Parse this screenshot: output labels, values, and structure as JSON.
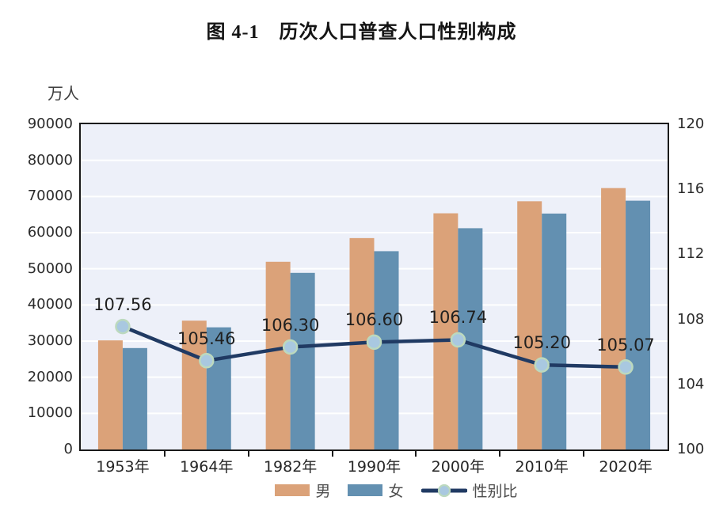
{
  "title": "图 4-1　历次人口普查人口性别构成",
  "chart_data": {
    "type": "bar+line combo",
    "title": "图 4-1　历次人口普查人口性别构成",
    "categories": [
      "1953年",
      "1964年",
      "1982年",
      "1990年",
      "2000年",
      "2010年",
      "2020年"
    ],
    "series": [
      {
        "name": "男",
        "type": "bar",
        "axis": "left",
        "color": "#dba279",
        "values": [
          30190,
          35652,
          51944,
          58495,
          65355,
          68685,
          72334
        ]
      },
      {
        "name": "女",
        "type": "bar",
        "axis": "left",
        "color": "#6390b1",
        "values": [
          28070,
          33806,
          48874,
          54873,
          61228,
          65287,
          68844
        ]
      },
      {
        "name": "性别比",
        "type": "line",
        "axis": "right",
        "color": "#203a63",
        "marker_fill": "#a9c8e0",
        "marker_stroke": "#bcd9be",
        "values": [
          107.56,
          105.46,
          106.3,
          106.6,
          106.74,
          105.2,
          105.07
        ]
      }
    ],
    "value_labels": [
      "107.56",
      "105.46",
      "106.30",
      "106.60",
      "106.74",
      "105.20",
      "105.07"
    ],
    "left_axis": {
      "unit": "万人",
      "min": 0,
      "max": 90000,
      "step": 10000,
      "ticks": [
        "0",
        "10000",
        "20000",
        "30000",
        "40000",
        "50000",
        "60000",
        "70000",
        "80000",
        "90000"
      ]
    },
    "right_axis": {
      "min": 100,
      "max": 120,
      "step": 4,
      "ticks": [
        "100",
        "104",
        "108",
        "112",
        "116",
        "120"
      ]
    },
    "grid": "horizontal white lines",
    "legend_position": "bottom-center",
    "plot_background": "#edf0f9",
    "axis_border_color": "#1a1a1a"
  }
}
